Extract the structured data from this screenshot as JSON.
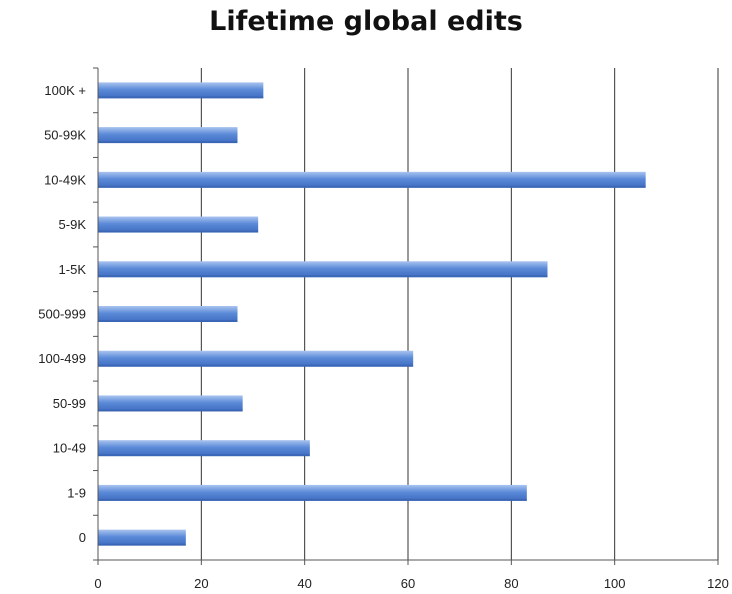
{
  "chart_data": {
    "type": "bar",
    "orientation": "horizontal",
    "title": "Lifetime global edits",
    "categories": [
      "100K +",
      "50-99K",
      "10-49K",
      "5-9K",
      "1-5K",
      "500-999",
      "100-499",
      "50-99",
      "10-49",
      "1-9",
      "0"
    ],
    "values": [
      32,
      27,
      106,
      31,
      87,
      27,
      61,
      28,
      41,
      83,
      17
    ],
    "xlim": [
      0,
      120
    ],
    "xticks": [
      0,
      20,
      40,
      60,
      80,
      100,
      120
    ],
    "grid": true,
    "legend": "none",
    "bar_color": "#5b8ad8"
  }
}
